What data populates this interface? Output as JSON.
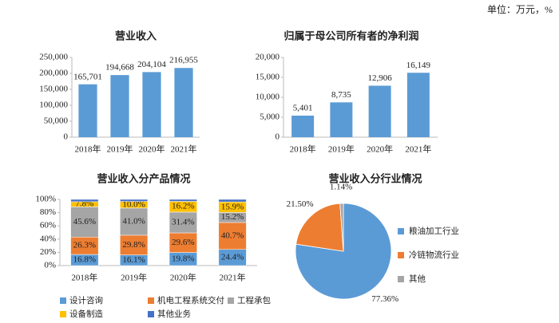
{
  "unit": "单位：万元，%",
  "chart_data": [
    {
      "type": "bar",
      "title": "营业收入",
      "categories": [
        "2018年",
        "2019年",
        "2020年",
        "2021年"
      ],
      "values": [
        165701,
        194668,
        204104,
        216955
      ],
      "value_labels": [
        "165,701",
        "194,668",
        "204,104",
        "216,955"
      ],
      "color": "#5b9bd5",
      "ylim": [
        0,
        250000
      ],
      "yticks": [
        0,
        {
          "value": 50000,
          "label": "50,000"
        },
        {
          "value": 100000,
          "label": "100,000"
        },
        {
          "value": 150000,
          "label": "150,000"
        },
        {
          "value": 200000,
          "label": "200,000"
        },
        {
          "value": 250000,
          "label": "250,000"
        }
      ],
      "grid": false
    },
    {
      "type": "bar",
      "title": "归属于母公司所有者的净利润",
      "categories": [
        "2018年",
        "2019年",
        "2020年",
        "2021年"
      ],
      "values": [
        5401,
        8735,
        12906,
        16149
      ],
      "value_labels": [
        "5,401",
        "8,735",
        "12,906",
        "16,149"
      ],
      "color": "#5b9bd5",
      "ylim": [
        0,
        20000
      ],
      "yticks": [
        0,
        {
          "value": 5000,
          "label": "5,000"
        },
        {
          "value": 10000,
          "label": "10,000"
        },
        {
          "value": 15000,
          "label": "15,000"
        },
        {
          "value": 20000,
          "label": "20,000"
        }
      ],
      "grid": false
    },
    {
      "type": "stacked_bar",
      "title": "营业收入分产品情况",
      "categories": [
        "2018年",
        "2019年",
        "2020年",
        "2021年"
      ],
      "series": [
        {
          "name": "设计咨询",
          "color": "#5b9bd5",
          "values": [
            16.8,
            16.1,
            19.8,
            24.4
          ],
          "value_labels": [
            "16.8%",
            "16.1%",
            "19.8%",
            "24.4%"
          ]
        },
        {
          "name": "机电工程系统交付",
          "color": "#ed7d31",
          "values": [
            26.3,
            29.8,
            29.6,
            40.7
          ],
          "value_labels": [
            "26.3%",
            "29.8%",
            "29.6%",
            "40.7%"
          ]
        },
        {
          "name": "工程承包",
          "color": "#a5a5a5",
          "values": [
            45.6,
            41.0,
            31.4,
            15.2
          ],
          "value_labels": [
            "45.6%",
            "41.0%",
            "31.4%",
            "15.2%"
          ]
        },
        {
          "name": "设备制造",
          "color": "#ffc000",
          "values": [
            7.8,
            10.0,
            16.2,
            15.9
          ],
          "value_labels": [
            "7.8%",
            "10.0%",
            "16.2%",
            "15.9%"
          ]
        },
        {
          "name": "其他业务",
          "color": "#4472c4",
          "values": [
            3.5,
            3.1,
            3.0,
            3.8
          ]
        }
      ],
      "ylim": [
        0,
        100
      ],
      "yticks": [
        {
          "value": 0,
          "label": "0%"
        },
        {
          "value": 20,
          "label": "20%"
        },
        {
          "value": 40,
          "label": "40%"
        },
        {
          "value": 60,
          "label": "60%"
        },
        {
          "value": 80,
          "label": "80%"
        },
        {
          "value": 100,
          "label": "100%"
        }
      ],
      "grid": false,
      "legend": "bottom"
    },
    {
      "type": "pie",
      "title": "营业收入分行业情况",
      "categories": [
        "粮油加工行业",
        "冷链物流行业",
        "其他"
      ],
      "values": [
        77.36,
        21.5,
        1.14
      ],
      "value_labels": [
        "77.36%",
        "21.50%",
        "1.14%"
      ],
      "colors": [
        "#5b9bd5",
        "#ed7d31",
        "#a5a5a5"
      ],
      "legend": "right"
    }
  ]
}
